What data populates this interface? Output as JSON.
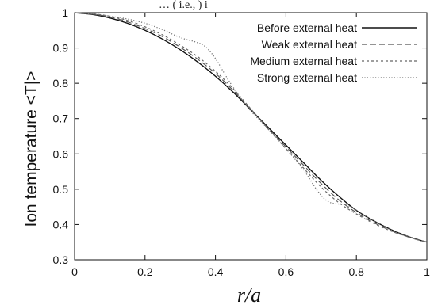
{
  "caption_fragment": "… ( i.e.,  ) i",
  "chart_data": {
    "type": "line",
    "title": "",
    "xlabel": "r/a",
    "ylabel": "Ion temperature <T|>",
    "xlim": [
      0,
      1
    ],
    "ylim": [
      0.3,
      1
    ],
    "xticks": [
      "0",
      "0.2",
      "0.4",
      "0.6",
      "0.8",
      "1"
    ],
    "yticks": [
      "0.3",
      "0.4",
      "0.5",
      "0.6",
      "0.7",
      "0.8",
      "0.9",
      "1"
    ],
    "grid": false,
    "legend_position": "top-right",
    "series": [
      {
        "name": "Before external heat",
        "line_style": "solid",
        "color": "#111111",
        "x": [
          0,
          0.05,
          0.1,
          0.15,
          0.2,
          0.25,
          0.3,
          0.35,
          0.4,
          0.45,
          0.5,
          0.55,
          0.6,
          0.65,
          0.7,
          0.75,
          0.8,
          0.85,
          0.9,
          0.95,
          1.0
        ],
        "y": [
          1.0,
          0.995,
          0.985,
          0.97,
          0.95,
          0.925,
          0.895,
          0.86,
          0.82,
          0.775,
          0.725,
          0.675,
          0.625,
          0.575,
          0.525,
          0.48,
          0.44,
          0.41,
          0.385,
          0.365,
          0.35
        ]
      },
      {
        "name": "Weak external heat",
        "line_style": "dashed",
        "color": "#555555",
        "x": [
          0,
          0.05,
          0.1,
          0.15,
          0.2,
          0.25,
          0.3,
          0.35,
          0.4,
          0.45,
          0.5,
          0.55,
          0.6,
          0.65,
          0.7,
          0.75,
          0.8,
          0.85,
          0.9,
          0.95,
          1.0
        ],
        "y": [
          1.0,
          0.996,
          0.988,
          0.974,
          0.955,
          0.932,
          0.902,
          0.868,
          0.828,
          0.78,
          0.726,
          0.672,
          0.62,
          0.568,
          0.516,
          0.47,
          0.434,
          0.405,
          0.382,
          0.364,
          0.35
        ]
      },
      {
        "name": "Medium external heat",
        "line_style": "dashed-fine",
        "color": "#666666",
        "x": [
          0,
          0.05,
          0.1,
          0.15,
          0.2,
          0.25,
          0.3,
          0.35,
          0.4,
          0.45,
          0.5,
          0.55,
          0.6,
          0.65,
          0.7,
          0.75,
          0.8,
          0.85,
          0.9,
          0.95,
          1.0
        ],
        "y": [
          1.0,
          0.997,
          0.99,
          0.978,
          0.96,
          0.937,
          0.908,
          0.875,
          0.834,
          0.785,
          0.728,
          0.67,
          0.615,
          0.56,
          0.506,
          0.462,
          0.43,
          0.403,
          0.381,
          0.364,
          0.35
        ]
      },
      {
        "name": "Strong external heat",
        "line_style": "dotted",
        "color": "#777777",
        "x": [
          0,
          0.05,
          0.1,
          0.15,
          0.2,
          0.25,
          0.28,
          0.31,
          0.34,
          0.37,
          0.4,
          0.43,
          0.46,
          0.5,
          0.55,
          0.6,
          0.65,
          0.69,
          0.72,
          0.75,
          0.78,
          0.82,
          0.86,
          0.9,
          0.95,
          1.0
        ],
        "y": [
          1.0,
          0.996,
          0.99,
          0.982,
          0.97,
          0.952,
          0.938,
          0.926,
          0.918,
          0.905,
          0.87,
          0.82,
          0.775,
          0.722,
          0.67,
          0.615,
          0.555,
          0.495,
          0.465,
          0.458,
          0.452,
          0.428,
          0.405,
          0.384,
          0.365,
          0.35
        ]
      }
    ]
  }
}
